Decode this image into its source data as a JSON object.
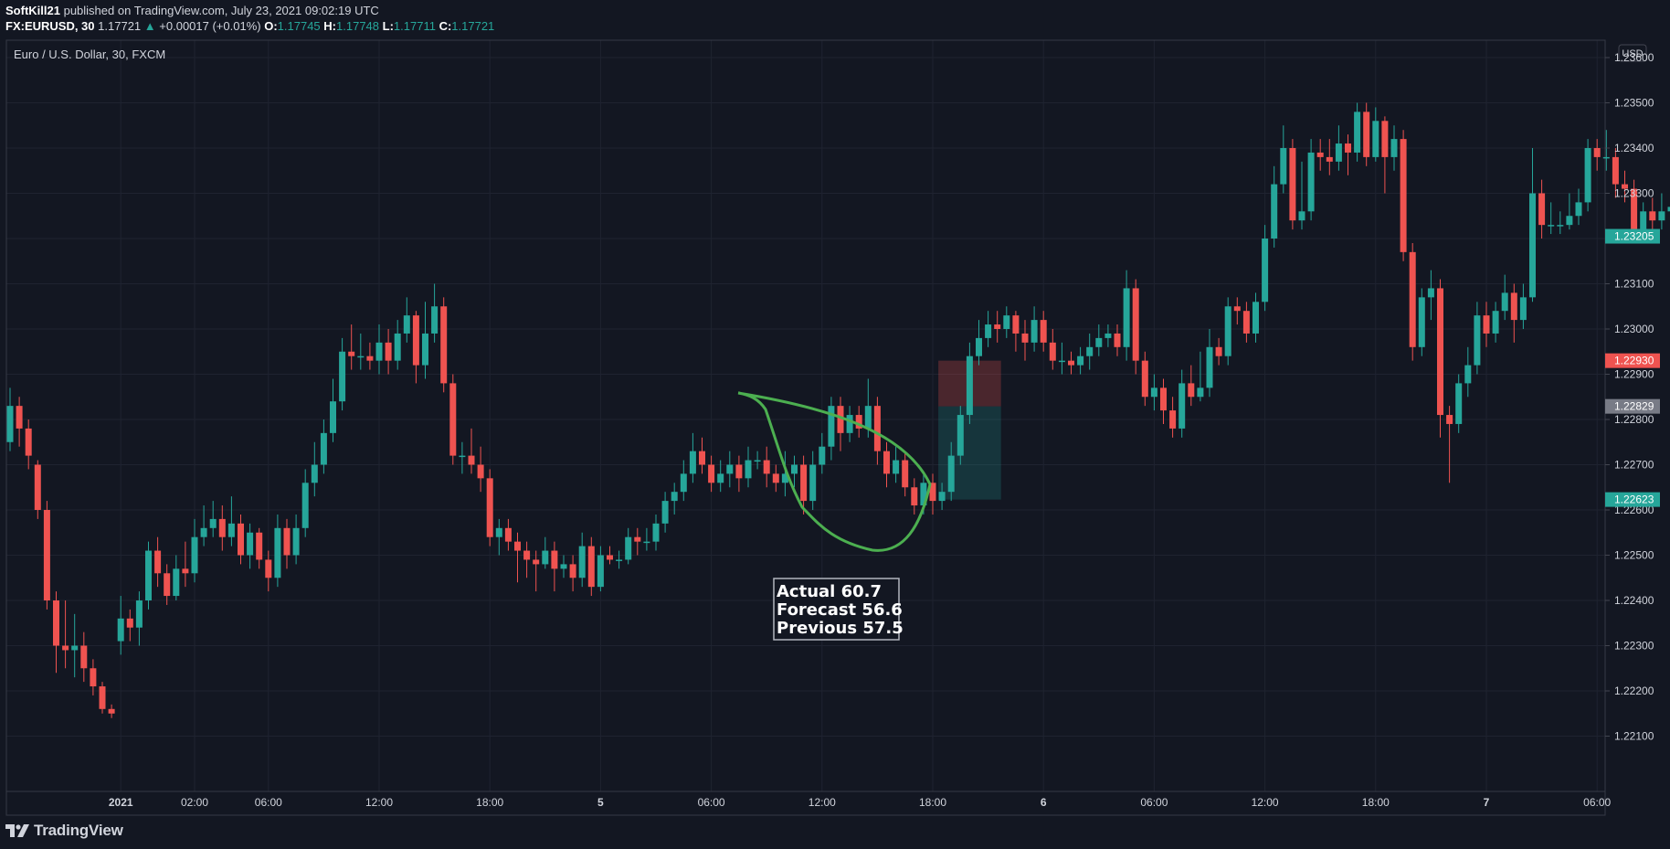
{
  "header": {
    "author": "SoftKill21",
    "publish_text": "published on TradingView.com, July 23, 2021 09:02:19 UTC",
    "symbol": "FX:EURUSD, 30",
    "last_price": "1.17721",
    "change_arrow": "▲",
    "change": "+0.00017 (+0.01%)",
    "open_label": "O:",
    "open": "1.17745",
    "high_label": "H:",
    "high": "1.17748",
    "low_label": "L:",
    "low": "1.17711",
    "close_label": "C:",
    "close": "1.17721"
  },
  "pane_title": "Euro / U.S. Dollar, 30, FXCM",
  "branding": {
    "logo_text": "TradingView",
    "logo_icon": "tradingview-logo-icon"
  },
  "colors": {
    "background": "#131722",
    "grid": "#1f2330",
    "up": "#26a69a",
    "down": "#ef5350",
    "text": "#d1d4dc",
    "annotation_stroke": "#4caf50",
    "last_price_badge": "#26a69a",
    "stop_badge": "#ef5350",
    "entry_badge": "#787b86",
    "target_badge": "#26a69a"
  },
  "chart_data": {
    "type": "candlestick",
    "title": "Euro / U.S. Dollar, 30, FXCM",
    "currency_label": "USD",
    "grid": true,
    "y_ticks": [
      1.236,
      1.235,
      1.234,
      1.233,
      1.232,
      1.231,
      1.23,
      1.229,
      1.228,
      1.227,
      1.226,
      1.225,
      1.224,
      1.223,
      1.222,
      1.221
    ],
    "y_tick_labels": [
      "1.23600",
      "1.23500",
      "1.23400",
      "1.23300",
      "1.23200",
      "1.23100",
      "1.23000",
      "1.22900",
      "1.22800",
      "1.22700",
      "1.22600",
      "1.22500",
      "1.22400",
      "1.22300",
      "1.22200",
      "1.22100"
    ],
    "x_tick_labels": [
      "2021",
      "02:00",
      "06:00",
      "12:00",
      "18:00",
      "5",
      "06:00",
      "12:00",
      "18:00",
      "6",
      "06:00",
      "12:00",
      "18:00",
      "7",
      "06:00"
    ],
    "x_tick_bold": [
      true,
      false,
      false,
      false,
      false,
      true,
      false,
      false,
      false,
      true,
      false,
      false,
      false,
      true,
      false
    ],
    "x_tick_bar_index": [
      12,
      20,
      28,
      40,
      52,
      64,
      76,
      88,
      100,
      112,
      124,
      136,
      148,
      160,
      172
    ],
    "candles": [
      [
        1.2275,
        1.2283,
        1.2287,
        1.2273
      ],
      [
        1.2283,
        1.2278,
        1.2285,
        1.2274
      ],
      [
        1.2278,
        1.2272,
        1.228,
        1.2269
      ],
      [
        1.227,
        1.226,
        1.2271,
        1.2258
      ],
      [
        1.226,
        1.224,
        1.2262,
        1.2238
      ],
      [
        1.224,
        1.223,
        1.2242,
        1.2224
      ],
      [
        1.223,
        1.2229,
        1.224,
        1.2225
      ],
      [
        1.2229,
        1.223,
        1.2237,
        1.2223
      ],
      [
        1.223,
        1.2225,
        1.2233,
        1.2222
      ],
      [
        1.2225,
        1.2221,
        1.2227,
        1.2219
      ],
      [
        1.2221,
        1.2216,
        1.2222,
        1.2215
      ],
      [
        1.2216,
        1.2215,
        1.2217,
        1.2214
      ],
      [
        1.2231,
        1.2236,
        1.2241,
        1.2228
      ],
      [
        1.2236,
        1.2234,
        1.2238,
        1.2231
      ],
      [
        1.2234,
        1.224,
        1.2242,
        1.223
      ],
      [
        1.224,
        1.2251,
        1.2253,
        1.2238
      ],
      [
        1.2251,
        1.2246,
        1.2254,
        1.2243
      ],
      [
        1.2246,
        1.2241,
        1.2248,
        1.2239
      ],
      [
        1.2241,
        1.2247,
        1.225,
        1.224
      ],
      [
        1.2247,
        1.2246,
        1.2253,
        1.2243
      ],
      [
        1.2246,
        1.2254,
        1.2258,
        1.2244
      ],
      [
        1.2254,
        1.2256,
        1.2261,
        1.2252
      ],
      [
        1.2256,
        1.2258,
        1.2262,
        1.2254
      ],
      [
        1.2258,
        1.2254,
        1.2261,
        1.2251
      ],
      [
        1.2254,
        1.2257,
        1.2263,
        1.2252
      ],
      [
        1.2257,
        1.225,
        1.2259,
        1.2248
      ],
      [
        1.225,
        1.2255,
        1.2257,
        1.2247
      ],
      [
        1.2255,
        1.2249,
        1.2256,
        1.2247
      ],
      [
        1.2249,
        1.2245,
        1.2251,
        1.2242
      ],
      [
        1.2245,
        1.2256,
        1.2259,
        1.2243
      ],
      [
        1.2256,
        1.225,
        1.2258,
        1.2247
      ],
      [
        1.225,
        1.2256,
        1.2259,
        1.2248
      ],
      [
        1.2256,
        1.2266,
        1.2269,
        1.2254
      ],
      [
        1.2266,
        1.227,
        1.2275,
        1.2263
      ],
      [
        1.227,
        1.2277,
        1.228,
        1.2268
      ],
      [
        1.2277,
        1.2284,
        1.2289,
        1.2275
      ],
      [
        1.2284,
        1.2295,
        1.2298,
        1.2282
      ],
      [
        1.2295,
        1.2294,
        1.2301,
        1.2291
      ],
      [
        1.2294,
        1.2294,
        1.2299,
        1.2291
      ],
      [
        1.2294,
        1.2293,
        1.2297,
        1.2291
      ],
      [
        1.2293,
        1.2297,
        1.2301,
        1.229
      ],
      [
        1.2297,
        1.2293,
        1.23,
        1.229
      ],
      [
        1.2293,
        1.2299,
        1.2302,
        1.2291
      ],
      [
        1.2299,
        1.2303,
        1.2307,
        1.2297
      ],
      [
        1.2303,
        1.2292,
        1.2304,
        1.2288
      ],
      [
        1.2292,
        1.2299,
        1.2306,
        1.2289
      ],
      [
        1.2299,
        1.2305,
        1.231,
        1.2297
      ],
      [
        1.2305,
        1.2288,
        1.2307,
        1.2286
      ],
      [
        1.2288,
        1.2272,
        1.229,
        1.227
      ],
      [
        1.2272,
        1.2272,
        1.2275,
        1.2268
      ],
      [
        1.2272,
        1.227,
        1.2278,
        1.2268
      ],
      [
        1.227,
        1.2267,
        1.2274,
        1.2264
      ],
      [
        1.2267,
        1.2254,
        1.2269,
        1.2252
      ],
      [
        1.2254,
        1.2256,
        1.2258,
        1.225
      ],
      [
        1.2256,
        1.2253,
        1.2258,
        1.2251
      ],
      [
        1.2253,
        1.2251,
        1.2255,
        1.2244
      ],
      [
        1.2251,
        1.2249,
        1.2253,
        1.2245
      ],
      [
        1.2249,
        1.2248,
        1.2251,
        1.2242
      ],
      [
        1.2248,
        1.2251,
        1.2254,
        1.2247
      ],
      [
        1.2251,
        1.2247,
        1.2253,
        1.2242
      ],
      [
        1.2247,
        1.2248,
        1.225,
        1.2245
      ],
      [
        1.2248,
        1.2245,
        1.225,
        1.2242
      ],
      [
        1.2245,
        1.2252,
        1.2255,
        1.2243
      ],
      [
        1.2252,
        1.2243,
        1.2254,
        1.2241
      ],
      [
        1.2243,
        1.225,
        1.2252,
        1.2242
      ],
      [
        1.225,
        1.2249,
        1.2252,
        1.2248
      ],
      [
        1.2249,
        1.2249,
        1.2251,
        1.2247
      ],
      [
        1.2249,
        1.2254,
        1.2256,
        1.2248
      ],
      [
        1.2254,
        1.2253,
        1.2256,
        1.225
      ],
      [
        1.2253,
        1.2253,
        1.2256,
        1.2251
      ],
      [
        1.2253,
        1.2257,
        1.2259,
        1.2251
      ],
      [
        1.2257,
        1.2262,
        1.2264,
        1.2255
      ],
      [
        1.2262,
        1.2264,
        1.2266,
        1.2259
      ],
      [
        1.2264,
        1.2268,
        1.2271,
        1.2262
      ],
      [
        1.2268,
        1.2273,
        1.2277,
        1.2266
      ],
      [
        1.2273,
        1.227,
        1.2276,
        1.2268
      ],
      [
        1.227,
        1.2266,
        1.2272,
        1.2264
      ],
      [
        1.2266,
        1.2268,
        1.2271,
        1.2264
      ],
      [
        1.2268,
        1.227,
        1.2273,
        1.2265
      ],
      [
        1.227,
        1.2267,
        1.2272,
        1.2264
      ],
      [
        1.2267,
        1.2271,
        1.2274,
        1.2265
      ],
      [
        1.2271,
        1.2271,
        1.2273,
        1.2269
      ],
      [
        1.2271,
        1.2268,
        1.2274,
        1.2265
      ],
      [
        1.2268,
        1.2266,
        1.227,
        1.2264
      ],
      [
        1.2266,
        1.2268,
        1.2273,
        1.2263
      ],
      [
        1.2268,
        1.227,
        1.2272,
        1.2265
      ],
      [
        1.227,
        1.2262,
        1.2272,
        1.2259
      ],
      [
        1.2262,
        1.227,
        1.2273,
        1.226
      ],
      [
        1.227,
        1.2274,
        1.2277,
        1.2268
      ],
      [
        1.2274,
        1.2283,
        1.2285,
        1.2271
      ],
      [
        1.2283,
        1.2277,
        1.2285,
        1.2273
      ],
      [
        1.2277,
        1.2281,
        1.2283,
        1.2275
      ],
      [
        1.2281,
        1.2278,
        1.2283,
        1.2276
      ],
      [
        1.2278,
        1.2283,
        1.2289,
        1.2276
      ],
      [
        1.2283,
        1.2273,
        1.2285,
        1.227
      ],
      [
        1.2273,
        1.2268,
        1.2275,
        1.2265
      ],
      [
        1.2268,
        1.2271,
        1.2274,
        1.2266
      ],
      [
        1.2271,
        1.2265,
        1.2273,
        1.2263
      ],
      [
        1.2265,
        1.2261,
        1.2267,
        1.2259
      ],
      [
        1.2261,
        1.2266,
        1.2268,
        1.2259
      ],
      [
        1.2266,
        1.2262,
        1.2268,
        1.2259
      ],
      [
        1.2262,
        1.2264,
        1.2266,
        1.226
      ],
      [
        1.2264,
        1.2272,
        1.2275,
        1.2262
      ],
      [
        1.2272,
        1.2281,
        1.2283,
        1.227
      ],
      [
        1.2281,
        1.2294,
        1.2297,
        1.2279
      ],
      [
        1.2294,
        1.2298,
        1.2302,
        1.2292
      ],
      [
        1.2298,
        1.2301,
        1.2304,
        1.2296
      ],
      [
        1.2301,
        1.23,
        1.2304,
        1.2297
      ],
      [
        1.23,
        1.2303,
        1.2305,
        1.2298
      ],
      [
        1.2303,
        1.2299,
        1.2304,
        1.2295
      ],
      [
        1.2299,
        1.2297,
        1.2302,
        1.2293
      ],
      [
        1.2297,
        1.2302,
        1.2305,
        1.2295
      ],
      [
        1.2302,
        1.2297,
        1.2304,
        1.2295
      ],
      [
        1.2297,
        1.2293,
        1.23,
        1.2291
      ],
      [
        1.2293,
        1.2293,
        1.2297,
        1.229
      ],
      [
        1.2293,
        1.2292,
        1.2295,
        1.229
      ],
      [
        1.2292,
        1.2294,
        1.2296,
        1.229
      ],
      [
        1.2294,
        1.2296,
        1.2299,
        1.2291
      ],
      [
        1.2296,
        1.2298,
        1.2301,
        1.2294
      ],
      [
        1.2298,
        1.2299,
        1.2301,
        1.2296
      ],
      [
        1.2299,
        1.2296,
        1.2301,
        1.2294
      ],
      [
        1.2296,
        1.2309,
        1.2313,
        1.2293
      ],
      [
        1.2309,
        1.2293,
        1.2311,
        1.229
      ],
      [
        1.2293,
        1.2285,
        1.2295,
        1.2283
      ],
      [
        1.2285,
        1.2287,
        1.229,
        1.2282
      ],
      [
        1.2287,
        1.2282,
        1.2289,
        1.2279
      ],
      [
        1.2282,
        1.2278,
        1.2285,
        1.2276
      ],
      [
        1.2278,
        1.2288,
        1.2291,
        1.2276
      ],
      [
        1.2288,
        1.2285,
        1.2292,
        1.2283
      ],
      [
        1.2285,
        1.2287,
        1.2295,
        1.2284
      ],
      [
        1.2287,
        1.2296,
        1.23,
        1.2285
      ],
      [
        1.2296,
        1.2294,
        1.2298,
        1.2292
      ],
      [
        1.2294,
        1.2305,
        1.2307,
        1.2292
      ],
      [
        1.2305,
        1.2304,
        1.2307,
        1.2301
      ],
      [
        1.2304,
        1.2299,
        1.2306,
        1.2297
      ],
      [
        1.2299,
        1.2306,
        1.2308,
        1.2297
      ],
      [
        1.2306,
        1.232,
        1.2323,
        1.2304
      ],
      [
        1.232,
        1.2332,
        1.2336,
        1.2318
      ],
      [
        1.2332,
        1.234,
        1.2345,
        1.233
      ],
      [
        1.234,
        1.2324,
        1.2342,
        1.2322
      ],
      [
        1.2324,
        1.2326,
        1.2337,
        1.2322
      ],
      [
        1.2326,
        1.2339,
        1.2342,
        1.2324
      ],
      [
        1.2339,
        1.2338,
        1.2342,
        1.2335
      ],
      [
        1.2338,
        1.2337,
        1.2342,
        1.2334
      ],
      [
        1.2337,
        1.2341,
        1.2345,
        1.2335
      ],
      [
        1.2341,
        1.2339,
        1.2343,
        1.2334
      ],
      [
        1.2339,
        1.2348,
        1.235,
        1.2337
      ],
      [
        1.2348,
        1.2338,
        1.235,
        1.2336
      ],
      [
        1.2338,
        1.2346,
        1.2349,
        1.2337
      ],
      [
        1.2346,
        1.2338,
        1.2347,
        1.233
      ],
      [
        1.2338,
        1.2342,
        1.2345,
        1.2335
      ],
      [
        1.2342,
        1.2317,
        1.2344,
        1.2315
      ],
      [
        1.2317,
        1.2296,
        1.2319,
        1.2293
      ],
      [
        1.2296,
        1.2307,
        1.2309,
        1.2294
      ],
      [
        1.2307,
        1.2309,
        1.2313,
        1.2302
      ],
      [
        1.2309,
        1.2281,
        1.2311,
        1.2276
      ],
      [
        1.2281,
        1.2279,
        1.2283,
        1.2266
      ],
      [
        1.2279,
        1.2288,
        1.229,
        1.2277
      ],
      [
        1.2288,
        1.2292,
        1.2296,
        1.2285
      ],
      [
        1.2292,
        1.2303,
        1.2306,
        1.229
      ],
      [
        1.2303,
        1.2299,
        1.2306,
        1.2296
      ],
      [
        1.2299,
        1.2304,
        1.2306,
        1.2297
      ],
      [
        1.2304,
        1.2308,
        1.2312,
        1.2302
      ],
      [
        1.2308,
        1.2302,
        1.231,
        1.2297
      ],
      [
        1.2302,
        1.2307,
        1.231,
        1.23
      ],
      [
        1.2307,
        1.233,
        1.234,
        1.2306
      ],
      [
        1.233,
        1.2323,
        1.2333,
        1.232
      ],
      [
        1.2323,
        1.2323,
        1.2328,
        1.2321
      ],
      [
        1.2323,
        1.2323,
        1.2326,
        1.2321
      ],
      [
        1.2323,
        1.2325,
        1.233,
        1.2322
      ],
      [
        1.2325,
        1.2328,
        1.2331,
        1.2323
      ],
      [
        1.2328,
        1.234,
        1.2342,
        1.2326
      ],
      [
        1.234,
        1.2338,
        1.2342,
        1.2335
      ],
      [
        1.2338,
        1.2338,
        1.2344,
        1.2335
      ],
      [
        1.2338,
        1.2332,
        1.234,
        1.2329
      ],
      [
        1.2332,
        1.2331,
        1.2335,
        1.2328
      ],
      [
        1.2331,
        1.2322,
        1.2333,
        1.232
      ],
      [
        1.2322,
        1.2326,
        1.2328,
        1.232
      ],
      [
        1.2326,
        1.2324,
        1.2329,
        1.2322
      ],
      [
        1.2324,
        1.2326,
        1.233,
        1.2322
      ],
      [
        1.2326,
        1.2327,
        1.2332,
        1.2324
      ],
      [
        1.2327,
        1.2324,
        1.2331,
        1.2322
      ],
      [
        1.2324,
        1.2314,
        1.2326,
        1.2311
      ],
      [
        1.2314,
        1.231,
        1.2316,
        1.2308
      ],
      [
        1.231,
        1.2318,
        1.2321,
        1.2306
      ],
      [
        1.2318,
        1.232,
        1.2325,
        1.2316
      ]
    ],
    "price_badges": [
      {
        "label": "1.23205",
        "value": 1.23205,
        "role": "last"
      },
      {
        "label": "1.22930",
        "value": 1.2293,
        "role": "stop"
      },
      {
        "label": "1.22829",
        "value": 1.22829,
        "role": "entry"
      },
      {
        "label": "1.22623",
        "value": 1.22623,
        "role": "target"
      }
    ],
    "position_box": {
      "first_bar": 101,
      "last_bar": 107,
      "stop": 1.2293,
      "entry": 1.22829,
      "target": 1.22623
    },
    "annotation_text": [
      "Actual 60.7",
      "Forecast 56.6",
      "Previous 57.5"
    ]
  }
}
